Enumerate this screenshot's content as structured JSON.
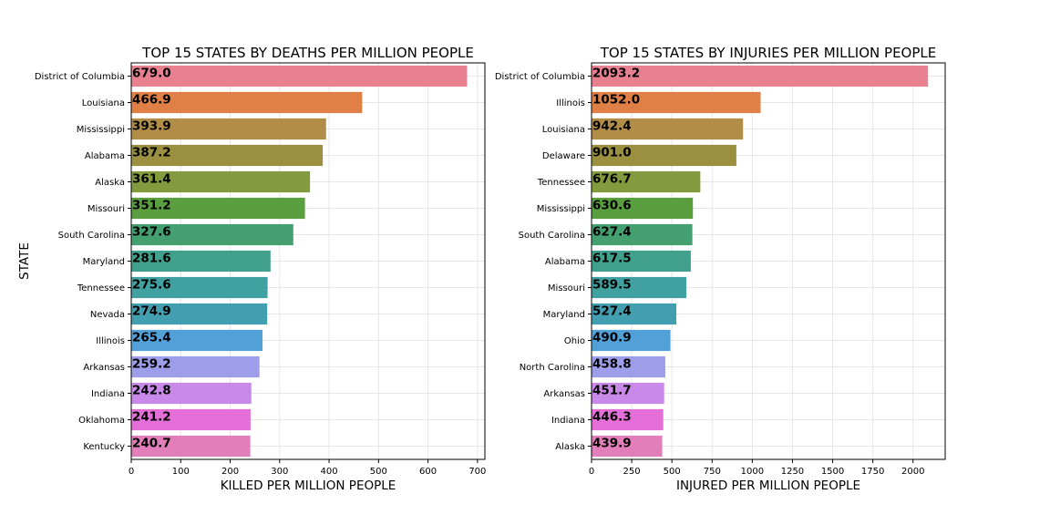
{
  "chart_data": [
    {
      "type": "bar",
      "orientation": "horizontal",
      "title": "TOP 15 STATES BY DEATHS PER MILLION PEOPLE",
      "xlabel": "KILLED PER MILLION PEOPLE",
      "ylabel": "STATE",
      "xlim": [
        0,
        715
      ],
      "xticks": [
        "0",
        "100",
        "200",
        "300",
        "400",
        "500",
        "600",
        "700"
      ],
      "grid": true,
      "categories": [
        "District of Columbia",
        "Louisiana",
        "Mississippi",
        "Alabama",
        "Alaska",
        "Missouri",
        "South Carolina",
        "Maryland",
        "Tennessee",
        "Nevada",
        "Illinois",
        "Arkansas",
        "Indiana",
        "Oklahoma",
        "Kentucky"
      ],
      "values": [
        679.0,
        466.9,
        393.9,
        387.2,
        361.4,
        351.2,
        327.6,
        281.6,
        275.6,
        274.9,
        265.4,
        259.2,
        242.8,
        241.2,
        240.7
      ],
      "value_labels": [
        "679.0",
        "466.9",
        "393.9",
        "387.2",
        "361.4",
        "351.2",
        "327.6",
        "281.6",
        "275.6",
        "274.9",
        "265.4",
        "259.2",
        "242.8",
        "241.2",
        "240.7"
      ]
    },
    {
      "type": "bar",
      "orientation": "horizontal",
      "title": "TOP 15 STATES BY INJURIES PER MILLION PEOPLE",
      "xlabel": "INJURED PER MILLION PEOPLE",
      "ylabel": "",
      "xlim": [
        0,
        2200
      ],
      "xticks": [
        "0",
        "250",
        "500",
        "750",
        "1000",
        "1250",
        "1500",
        "1750",
        "2000"
      ],
      "grid": true,
      "categories": [
        "District of Columbia",
        "Illinois",
        "Louisiana",
        "Delaware",
        "Tennessee",
        "Mississippi",
        "South Carolina",
        "Alabama",
        "Missouri",
        "Maryland",
        "Ohio",
        "North Carolina",
        "Arkansas",
        "Indiana",
        "Alaska"
      ],
      "values": [
        2093.2,
        1052.0,
        942.4,
        901.0,
        676.7,
        630.6,
        627.4,
        617.5,
        589.5,
        527.4,
        490.9,
        458.8,
        451.7,
        446.3,
        439.9
      ],
      "value_labels": [
        "2093.2",
        "1052.0",
        "942.4",
        "901.0",
        "676.7",
        "630.6",
        "627.4",
        "617.5",
        "589.5",
        "527.4",
        "490.9",
        "458.8",
        "451.7",
        "446.3",
        "439.9"
      ]
    }
  ],
  "bar_colors": [
    "#e8808f",
    "#e08046",
    "#b28d48",
    "#9a9040",
    "#849a3e",
    "#5a9f3f",
    "#44a070",
    "#41a08c",
    "#41a0a0",
    "#439fb0",
    "#52a0d8",
    "#9e9de9",
    "#c889e8",
    "#e46fd8",
    "#e27fba"
  ]
}
